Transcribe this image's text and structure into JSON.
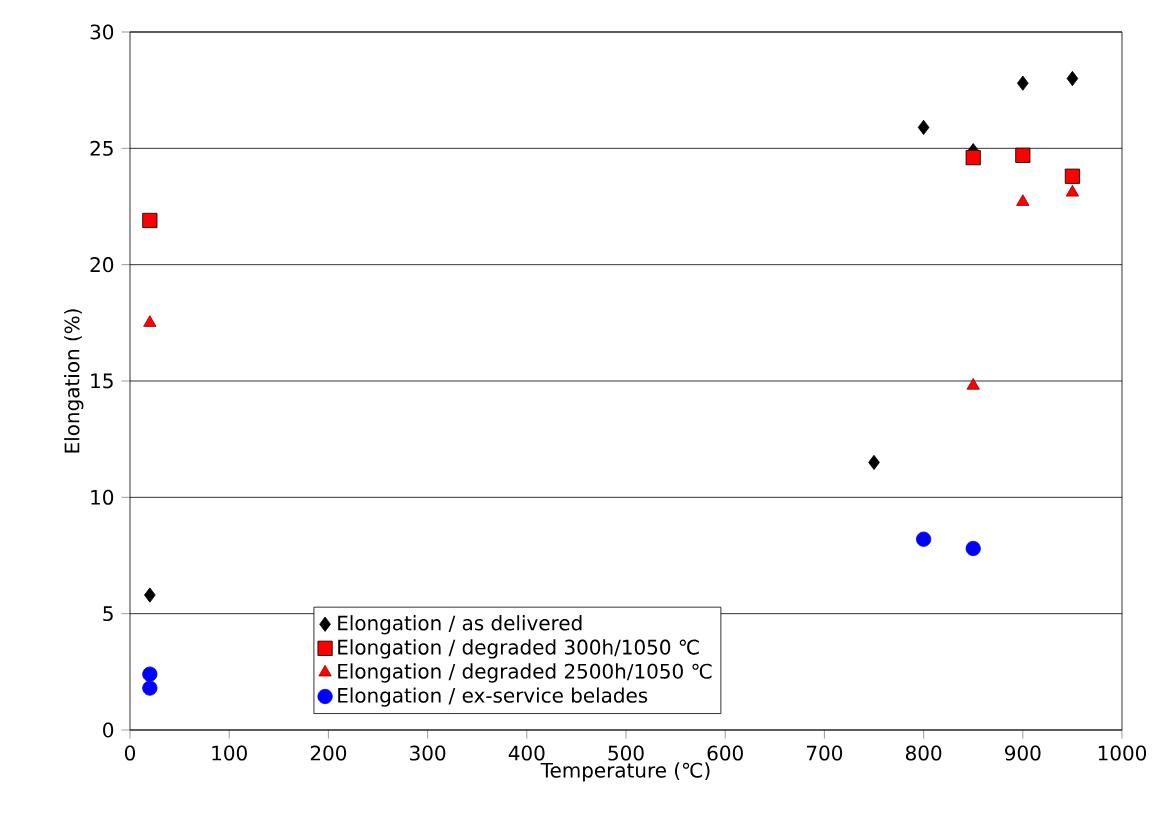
{
  "chart_data": {
    "type": "scatter",
    "xlabel": "Temperature (℃)",
    "ylabel": "Elongation (%)",
    "xlim": [
      0,
      1000
    ],
    "xticks": [
      0,
      100,
      200,
      300,
      400,
      500,
      600,
      700,
      800,
      900,
      1000
    ],
    "ylim": [
      0,
      30
    ],
    "yticks": [
      0,
      5,
      10,
      15,
      20,
      25,
      30
    ],
    "grid": "y",
    "legend": "bottom",
    "series": [
      {
        "name": "Elongation / as delivered",
        "color": "#000000",
        "marker": "diamond",
        "x": [
          20,
          750,
          800,
          850,
          900,
          950
        ],
        "values": [
          5.8,
          11.5,
          25.9,
          24.9,
          27.8,
          28.0
        ]
      },
      {
        "name": "Elongation / degraded 300h/1050 ℃",
        "color": "#ff0000",
        "marker": "square",
        "x": [
          20,
          850,
          900,
          950
        ],
        "values": [
          21.9,
          24.6,
          24.7,
          23.8
        ]
      },
      {
        "name": "Elongation / degraded 2500h/1050 ℃",
        "color": "#ff0000",
        "marker": "triangle",
        "x": [
          20,
          850,
          900,
          950
        ],
        "values": [
          17.5,
          14.8,
          22.7,
          23.1
        ]
      },
      {
        "name": "Elongation / ex-service belades",
        "color": "#0000ff",
        "marker": "circle",
        "x": [
          20,
          20,
          800,
          850
        ],
        "values": [
          2.4,
          1.8,
          8.2,
          7.8
        ]
      }
    ]
  }
}
